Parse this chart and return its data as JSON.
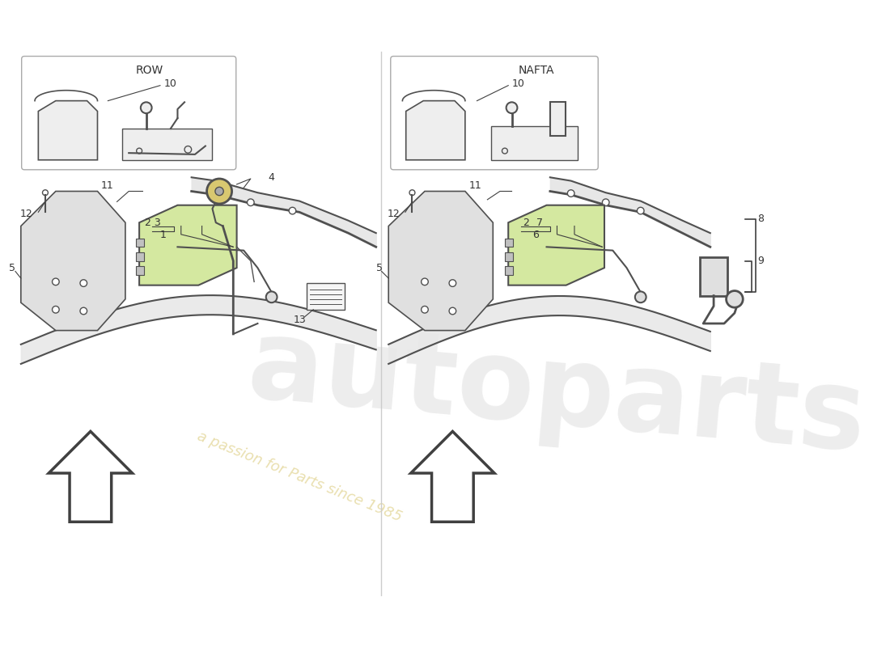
{
  "bg_color": "#ffffff",
  "divider_color": "#cccccc",
  "line_color": "#404040",
  "part_color": "#505050",
  "label_color": "#333333",
  "highlight_fill": "#d4e8a0",
  "watermark_color": "#d8d8d8",
  "watermark_alpha": 0.45,
  "watermark_sub_color": "#d4c060",
  "watermark_sub_alpha": 0.5,
  "row_label": "ROW",
  "nafta_label": "NAFTA",
  "watermark_text": "autoparts",
  "watermark_sub": "a passion for Parts since 1985",
  "label_fontsize": 10,
  "num_fontsize": 9
}
